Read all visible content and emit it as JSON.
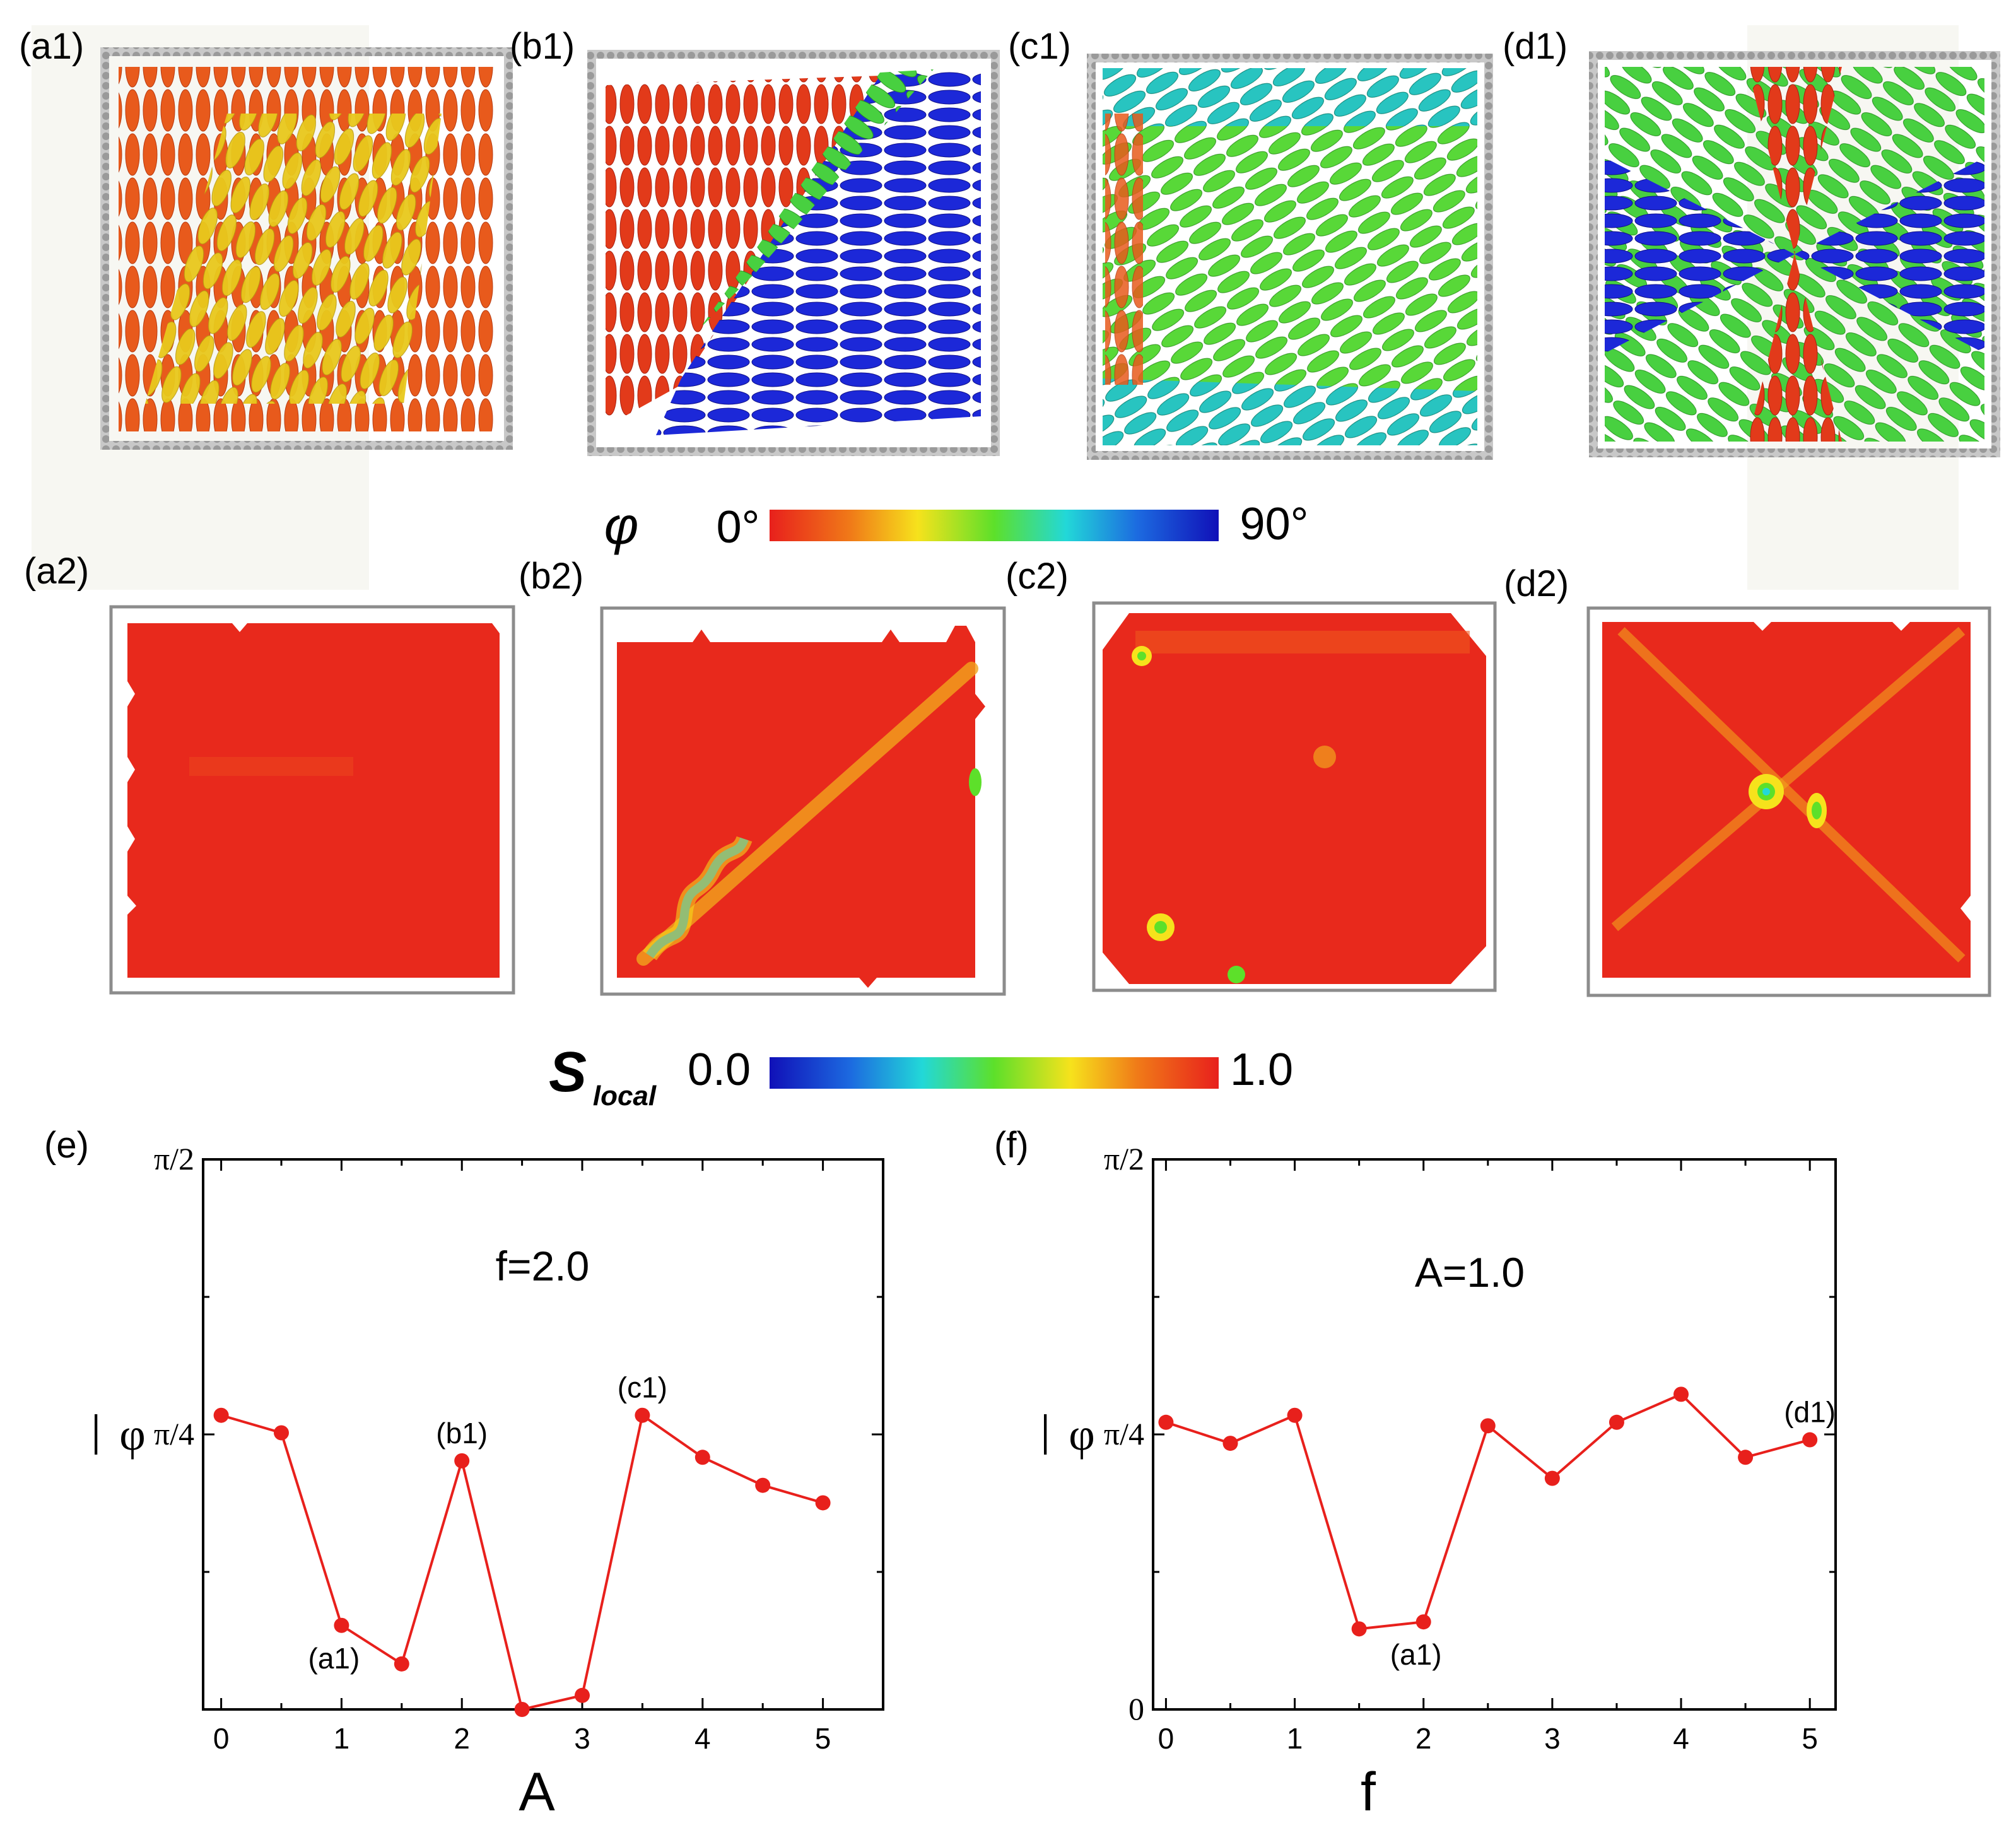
{
  "panels": {
    "a1": "(a1)",
    "b1": "(b1)",
    "c1": "(c1)",
    "d1": "(d1)",
    "a2": "(a2)",
    "b2": "(b2)",
    "c2": "(c2)",
    "d2": "(d2)",
    "e": "(e)",
    "f": "(f)"
  },
  "colorbar_phi": {
    "symbol": "φ",
    "min_label": "0°",
    "max_label": "90°",
    "colors": [
      "#e8201c",
      "#f07a18",
      "#f6e21c",
      "#5de02a",
      "#22d8d8",
      "#1c6ae0",
      "#1010b8"
    ]
  },
  "colorbar_s": {
    "symbol": "S",
    "subscript": "local",
    "min_label": "0.0",
    "max_label": "1.0",
    "colors": [
      "#1010b8",
      "#1c6ae0",
      "#22d8d8",
      "#5de02a",
      "#f6e21c",
      "#f07a18",
      "#e8201c"
    ]
  },
  "chart_data": [
    {
      "type": "line",
      "panel": "(e)",
      "annotation": "f=2.0",
      "xlabel": "A",
      "ylabel": "φ",
      "ylabel_bar": "—",
      "xlim": [
        -0.15,
        5.5
      ],
      "ylim": [
        0,
        1.5708
      ],
      "xticks": [
        0,
        1,
        2,
        3,
        4,
        5
      ],
      "xtick_labels": [
        "0",
        "1",
        "2",
        "3",
        "4",
        "5"
      ],
      "yticks": [
        0.7854,
        1.5708
      ],
      "ytick_labels": [
        "π/4",
        "π/2"
      ],
      "x": [
        0,
        0.5,
        1,
        1.5,
        2,
        2.5,
        3,
        3.5,
        4,
        4.5,
        5
      ],
      "y": [
        0.84,
        0.79,
        0.24,
        0.13,
        0.71,
        0.0,
        0.04,
        0.84,
        0.72,
        0.64,
        0.59
      ],
      "color": "#e8201c",
      "point_labels": [
        {
          "index": 2,
          "text": "(a1)",
          "pos": "below"
        },
        {
          "index": 4,
          "text": "(b1)",
          "pos": "above"
        },
        {
          "index": 7,
          "text": "(c1)",
          "pos": "above"
        }
      ]
    },
    {
      "type": "line",
      "panel": "(f)",
      "annotation": "A=1.0",
      "xlabel": "f",
      "ylabel": "φ",
      "ylabel_bar": "—",
      "xlim": [
        -0.1,
        5.2
      ],
      "ylim": [
        0,
        1.5708
      ],
      "xticks": [
        0,
        1,
        2,
        3,
        4,
        5
      ],
      "xtick_labels": [
        "0",
        "1",
        "2",
        "3",
        "4",
        "5"
      ],
      "yticks": [
        0,
        0.7854,
        1.5708
      ],
      "ytick_labels": [
        "0",
        "π/4",
        "π/2"
      ],
      "x": [
        0,
        0.5,
        1,
        1.5,
        2,
        2.5,
        3,
        3.5,
        4,
        4.5,
        5
      ],
      "y": [
        0.82,
        0.76,
        0.84,
        0.23,
        0.25,
        0.81,
        0.66,
        0.82,
        0.9,
        0.72,
        0.77
      ],
      "color": "#e8201c",
      "point_labels": [
        {
          "index": 4,
          "text": "(a1)",
          "pos": "below"
        },
        {
          "index": 10,
          "text": "(d1)",
          "pos": "above"
        }
      ]
    }
  ]
}
